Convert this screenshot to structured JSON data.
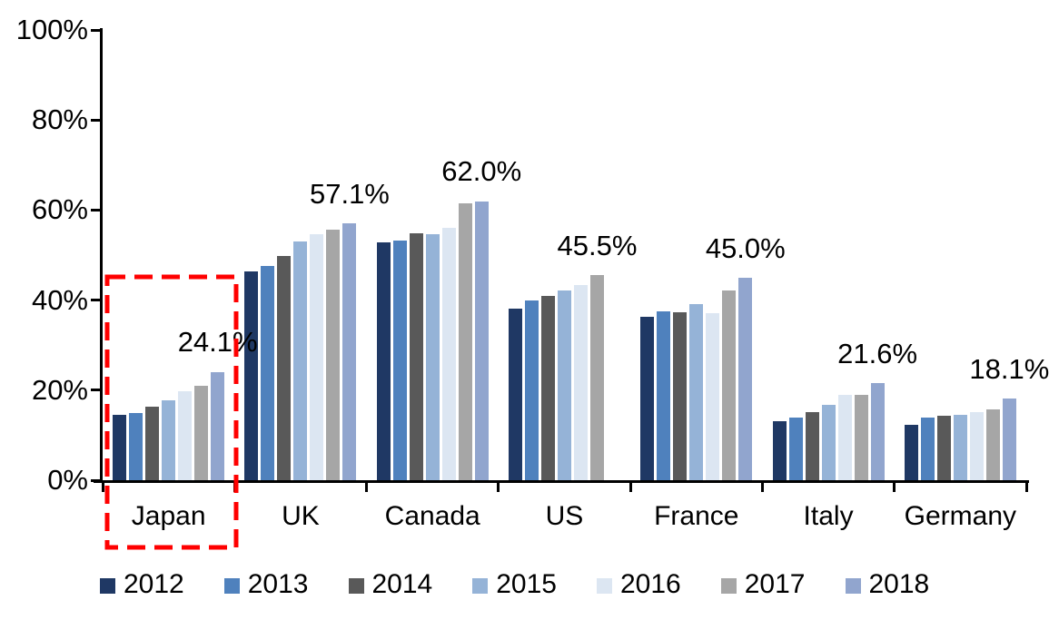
{
  "chart_data": {
    "type": "bar",
    "title": "",
    "categories": [
      "Japan",
      "UK",
      "Canada",
      "US",
      "France",
      "Italy",
      "Germany"
    ],
    "series": [
      {
        "name": "2012",
        "color": "#1F3864",
        "values": [
          14.5,
          46.4,
          52.9,
          38.2,
          36.4,
          13.2,
          12.3
        ]
      },
      {
        "name": "2013",
        "color": "#4F81BD",
        "values": [
          14.9,
          47.6,
          53.3,
          39.9,
          37.6,
          14.0,
          13.9
        ]
      },
      {
        "name": "2014",
        "color": "#595959",
        "values": [
          16.4,
          49.8,
          54.8,
          41.0,
          37.4,
          15.2,
          14.3
        ]
      },
      {
        "name": "2015",
        "color": "#95B3D7",
        "values": [
          17.8,
          53.1,
          54.6,
          42.1,
          39.2,
          16.7,
          14.5
        ]
      },
      {
        "name": "2016",
        "color": "#DCE6F2",
        "values": [
          19.7,
          54.7,
          56.0,
          43.4,
          37.2,
          18.9,
          15.2
        ]
      },
      {
        "name": "2017",
        "color": "#A6A6A6",
        "values": [
          20.9,
          55.7,
          61.5,
          45.5,
          42.2,
          19.0,
          15.8
        ]
      },
      {
        "name": "2018",
        "color": "#91A5CE",
        "values": [
          24.1,
          57.1,
          62.0,
          null,
          45.0,
          21.6,
          18.1
        ]
      }
    ],
    "annotations": [
      {
        "category": "Japan",
        "text": "24.1%"
      },
      {
        "category": "UK",
        "text": "57.1%"
      },
      {
        "category": "Canada",
        "text": "62.0%"
      },
      {
        "category": "US",
        "text": "45.5%"
      },
      {
        "category": "France",
        "text": "45.0%"
      },
      {
        "category": "Italy",
        "text": "21.6%"
      },
      {
        "category": "Germany",
        "text": "18.1%"
      }
    ],
    "y_axis": {
      "min": 0,
      "max": 100,
      "tick_step": 20,
      "tick_labels": [
        "0%",
        "20%",
        "40%",
        "60%",
        "80%",
        "100%"
      ]
    },
    "legend": {
      "position": "bottom",
      "items": [
        "2012",
        "2013",
        "2014",
        "2015",
        "2016",
        "2017",
        "2018"
      ]
    },
    "grid": false,
    "highlight": {
      "category": "Japan",
      "style": "dashed-box",
      "color": "#FF0000"
    }
  }
}
